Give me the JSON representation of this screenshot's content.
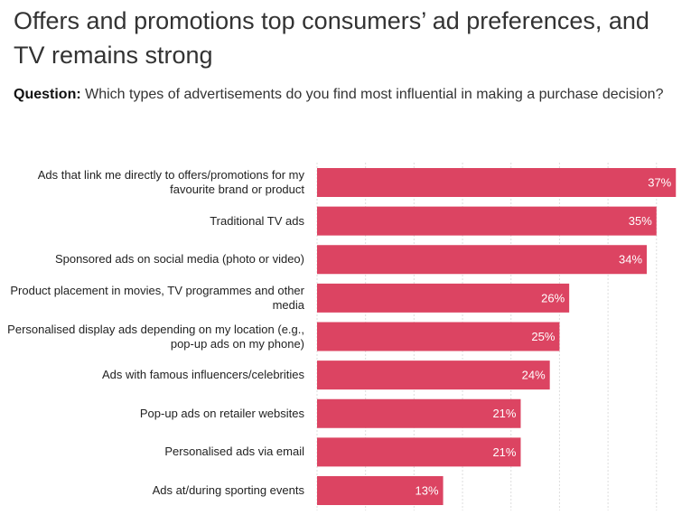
{
  "chart_data": {
    "type": "bar",
    "orientation": "horizontal",
    "title": "Offers and promotions top consumers’ ad preferences, and TV remains strong",
    "question_label": "Question:",
    "question": "Which types of advertisements do you find most influential in making a purchase decision?",
    "categories": [
      "Ads that link me directly to offers/promotions for my favourite brand or product",
      "Traditional TV ads",
      "Sponsored ads on social media (photo or video)",
      "Product placement in movies, TV programmes and other media",
      "Personalised display ads depending on my location (e.g., pop-up ads on my phone)",
      "Ads with famous influencers/celebrities",
      "Pop-up ads on retailer websites",
      "Personalised ads via email",
      "Ads at/during sporting events"
    ],
    "values": [
      37,
      35,
      34,
      26,
      25,
      24,
      21,
      21,
      13
    ],
    "value_labels": [
      "37%",
      "35%",
      "34%",
      "26%",
      "25%",
      "24%",
      "21%",
      "21%",
      "13%"
    ],
    "color": "#dc4462",
    "xlim": [
      0,
      38
    ],
    "xticks": [
      0,
      5,
      10,
      15,
      20,
      25,
      30,
      35
    ],
    "grid": true
  }
}
